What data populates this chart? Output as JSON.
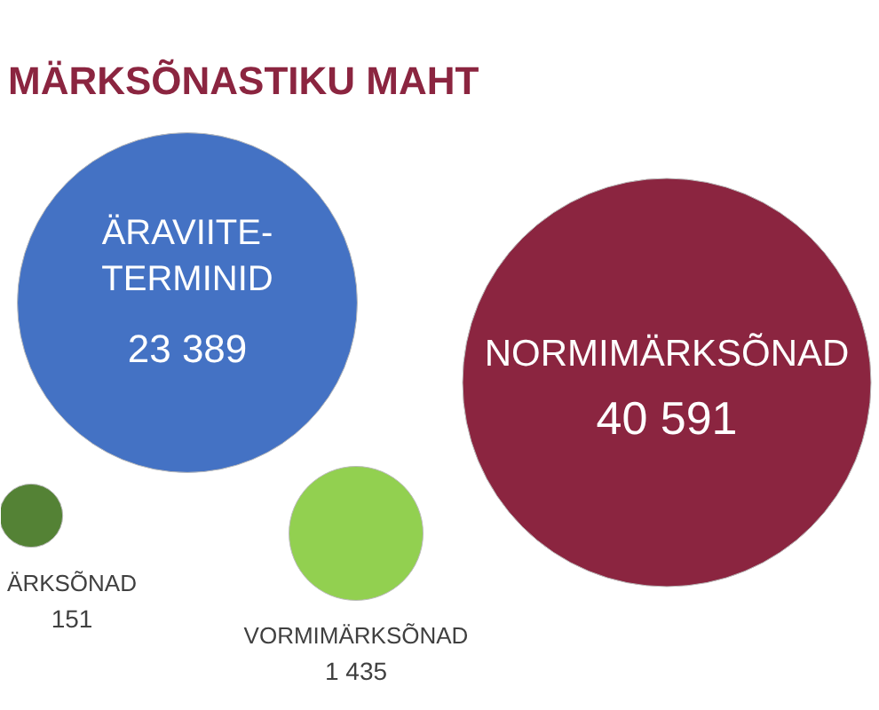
{
  "chart_data": {
    "type": "other",
    "title": "MÄRKSÕNASTIKU MAHT",
    "categories": [
      "ÄRAVIITE-\nTERMINID",
      "NORMIMÄRKSÕNAD",
      "ÄRKSÕNAD",
      "VORMIMÄRKSÕNAD"
    ],
    "values": [
      23389,
      40591,
      151,
      1435
    ],
    "value_labels": [
      "23 389",
      "40 591",
      "151",
      "1 435"
    ],
    "colors": [
      "#4472c4",
      "#8b2540",
      "#548235",
      "#92d050"
    ]
  }
}
